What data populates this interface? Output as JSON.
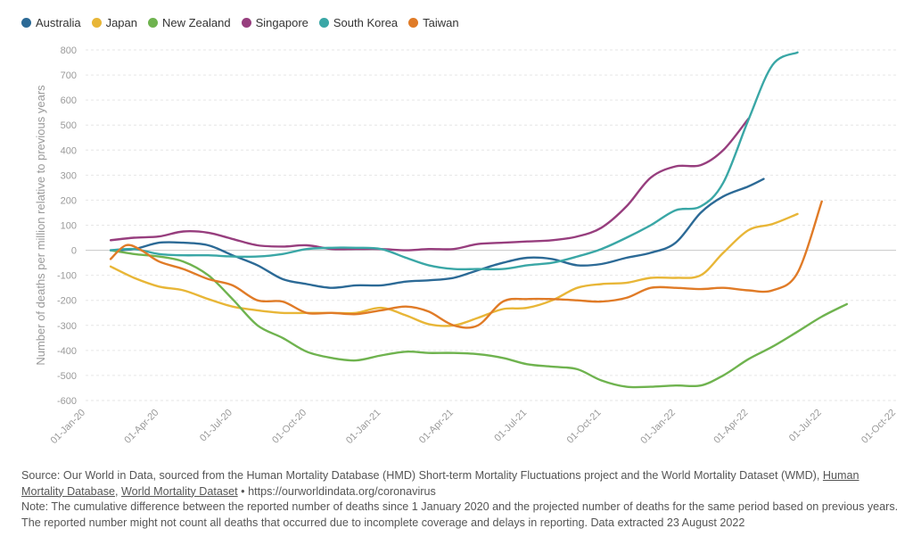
{
  "chart_data": {
    "type": "line",
    "ylabel": "Number of deaths per million relative to previous years",
    "ylim": [
      -600,
      800
    ],
    "yticks": [
      800,
      700,
      600,
      500,
      400,
      300,
      200,
      100,
      0,
      -100,
      -200,
      -300,
      -400,
      -500,
      -600
    ],
    "xlim": [
      "2020-01-01",
      "2022-10-01"
    ],
    "xticks": [
      {
        "date": "2020-01-01",
        "label": "01-Jan-20"
      },
      {
        "date": "2020-04-01",
        "label": "01-Apr-20"
      },
      {
        "date": "2020-07-01",
        "label": "01-Jul-20"
      },
      {
        "date": "2020-10-01",
        "label": "01-Oct-20"
      },
      {
        "date": "2021-01-01",
        "label": "01-Jan-21"
      },
      {
        "date": "2021-04-01",
        "label": "01-Apr-21"
      },
      {
        "date": "2021-07-01",
        "label": "01-Jul-21"
      },
      {
        "date": "2021-10-01",
        "label": "01-Oct-21"
      },
      {
        "date": "2022-01-01",
        "label": "01-Jan-22"
      },
      {
        "date": "2022-04-01",
        "label": "01-Apr-22"
      },
      {
        "date": "2022-07-01",
        "label": "01-Jul-22"
      },
      {
        "date": "2022-10-01",
        "label": "01-Oct-22"
      }
    ],
    "grid": true,
    "legend_position": "top-left",
    "series": [
      {
        "name": "Australia",
        "color": "#2c6a96",
        "points": [
          [
            "2020-02-01",
            0
          ],
          [
            "2020-03-01",
            5
          ],
          [
            "2020-04-01",
            30
          ],
          [
            "2020-05-01",
            30
          ],
          [
            "2020-06-01",
            20
          ],
          [
            "2020-07-01",
            -20
          ],
          [
            "2020-08-01",
            -60
          ],
          [
            "2020-09-01",
            -115
          ],
          [
            "2020-10-01",
            -135
          ],
          [
            "2020-11-01",
            -150
          ],
          [
            "2020-12-01",
            -140
          ],
          [
            "2021-01-01",
            -140
          ],
          [
            "2021-02-01",
            -125
          ],
          [
            "2021-03-01",
            -120
          ],
          [
            "2021-04-01",
            -110
          ],
          [
            "2021-05-01",
            -80
          ],
          [
            "2021-06-01",
            -50
          ],
          [
            "2021-07-01",
            -30
          ],
          [
            "2021-08-01",
            -35
          ],
          [
            "2021-09-01",
            -60
          ],
          [
            "2021-10-01",
            -55
          ],
          [
            "2021-11-01",
            -30
          ],
          [
            "2021-12-01",
            -10
          ],
          [
            "2022-01-01",
            30
          ],
          [
            "2022-02-01",
            150
          ],
          [
            "2022-03-01",
            215
          ],
          [
            "2022-04-01",
            255
          ],
          [
            "2022-04-20",
            285
          ]
        ]
      },
      {
        "name": "Japan",
        "color": "#e8b637",
        "points": [
          [
            "2020-02-01",
            -65
          ],
          [
            "2020-03-01",
            -110
          ],
          [
            "2020-04-01",
            -145
          ],
          [
            "2020-05-01",
            -160
          ],
          [
            "2020-06-01",
            -195
          ],
          [
            "2020-07-01",
            -225
          ],
          [
            "2020-08-01",
            -240
          ],
          [
            "2020-09-01",
            -250
          ],
          [
            "2020-10-01",
            -250
          ],
          [
            "2020-11-01",
            -250
          ],
          [
            "2020-12-01",
            -250
          ],
          [
            "2021-01-01",
            -230
          ],
          [
            "2021-02-01",
            -260
          ],
          [
            "2021-03-01",
            -295
          ],
          [
            "2021-04-01",
            -300
          ],
          [
            "2021-05-01",
            -270
          ],
          [
            "2021-06-01",
            -235
          ],
          [
            "2021-07-01",
            -230
          ],
          [
            "2021-08-01",
            -200
          ],
          [
            "2021-09-01",
            -150
          ],
          [
            "2021-10-01",
            -135
          ],
          [
            "2021-11-01",
            -130
          ],
          [
            "2021-12-01",
            -110
          ],
          [
            "2022-01-01",
            -110
          ],
          [
            "2022-02-01",
            -100
          ],
          [
            "2022-03-01",
            -10
          ],
          [
            "2022-04-01",
            80
          ],
          [
            "2022-05-01",
            105
          ],
          [
            "2022-06-01",
            145
          ]
        ]
      },
      {
        "name": "New Zealand",
        "color": "#6fb34f",
        "points": [
          [
            "2020-02-01",
            0
          ],
          [
            "2020-03-01",
            -15
          ],
          [
            "2020-04-01",
            -25
          ],
          [
            "2020-05-01",
            -45
          ],
          [
            "2020-06-01",
            -100
          ],
          [
            "2020-07-01",
            -195
          ],
          [
            "2020-08-01",
            -300
          ],
          [
            "2020-09-01",
            -350
          ],
          [
            "2020-10-01",
            -405
          ],
          [
            "2020-11-01",
            -430
          ],
          [
            "2020-12-01",
            -440
          ],
          [
            "2021-01-01",
            -420
          ],
          [
            "2021-02-01",
            -405
          ],
          [
            "2021-03-01",
            -410
          ],
          [
            "2021-04-01",
            -410
          ],
          [
            "2021-05-01",
            -415
          ],
          [
            "2021-06-01",
            -430
          ],
          [
            "2021-07-01",
            -455
          ],
          [
            "2021-08-01",
            -465
          ],
          [
            "2021-09-01",
            -475
          ],
          [
            "2021-10-01",
            -520
          ],
          [
            "2021-11-01",
            -545
          ],
          [
            "2021-12-01",
            -545
          ],
          [
            "2022-01-01",
            -540
          ],
          [
            "2022-02-01",
            -540
          ],
          [
            "2022-03-01",
            -500
          ],
          [
            "2022-04-01",
            -435
          ],
          [
            "2022-05-01",
            -385
          ],
          [
            "2022-06-01",
            -325
          ],
          [
            "2022-07-01",
            -265
          ],
          [
            "2022-08-01",
            -215
          ]
        ]
      },
      {
        "name": "Singapore",
        "color": "#973e7e",
        "points": [
          [
            "2020-02-01",
            40
          ],
          [
            "2020-03-01",
            50
          ],
          [
            "2020-04-01",
            55
          ],
          [
            "2020-05-01",
            75
          ],
          [
            "2020-06-01",
            70
          ],
          [
            "2020-07-01",
            45
          ],
          [
            "2020-08-01",
            20
          ],
          [
            "2020-09-01",
            15
          ],
          [
            "2020-10-01",
            20
          ],
          [
            "2020-11-01",
            5
          ],
          [
            "2020-12-01",
            5
          ],
          [
            "2021-01-01",
            5
          ],
          [
            "2021-02-01",
            0
          ],
          [
            "2021-03-01",
            5
          ],
          [
            "2021-04-01",
            5
          ],
          [
            "2021-05-01",
            25
          ],
          [
            "2021-06-01",
            30
          ],
          [
            "2021-07-01",
            35
          ],
          [
            "2021-08-01",
            40
          ],
          [
            "2021-09-01",
            55
          ],
          [
            "2021-10-01",
            90
          ],
          [
            "2021-11-01",
            175
          ],
          [
            "2021-12-01",
            290
          ],
          [
            "2022-01-01",
            335
          ],
          [
            "2022-02-01",
            340
          ],
          [
            "2022-03-01",
            400
          ],
          [
            "2022-04-01",
            525
          ]
        ]
      },
      {
        "name": "South Korea",
        "color": "#3aa7a6",
        "points": [
          [
            "2020-02-01",
            0
          ],
          [
            "2020-03-01",
            5
          ],
          [
            "2020-04-01",
            -15
          ],
          [
            "2020-05-01",
            -20
          ],
          [
            "2020-06-01",
            -20
          ],
          [
            "2020-07-01",
            -25
          ],
          [
            "2020-08-01",
            -25
          ],
          [
            "2020-09-01",
            -15
          ],
          [
            "2020-10-01",
            5
          ],
          [
            "2020-11-01",
            10
          ],
          [
            "2020-12-01",
            10
          ],
          [
            "2021-01-01",
            5
          ],
          [
            "2021-02-01",
            -30
          ],
          [
            "2021-03-01",
            -60
          ],
          [
            "2021-04-01",
            -75
          ],
          [
            "2021-05-01",
            -75
          ],
          [
            "2021-06-01",
            -75
          ],
          [
            "2021-07-01",
            -60
          ],
          [
            "2021-08-01",
            -50
          ],
          [
            "2021-09-01",
            -25
          ],
          [
            "2021-10-01",
            5
          ],
          [
            "2021-11-01",
            50
          ],
          [
            "2021-12-01",
            100
          ],
          [
            "2022-01-01",
            160
          ],
          [
            "2022-02-01",
            175
          ],
          [
            "2022-03-01",
            270
          ],
          [
            "2022-04-01",
            520
          ],
          [
            "2022-05-01",
            740
          ],
          [
            "2022-06-01",
            790
          ]
        ]
      },
      {
        "name": "Taiwan",
        "color": "#e07b27",
        "points": [
          [
            "2020-02-01",
            -35
          ],
          [
            "2020-02-20",
            20
          ],
          [
            "2020-03-10",
            0
          ],
          [
            "2020-04-01",
            -45
          ],
          [
            "2020-05-01",
            -75
          ],
          [
            "2020-06-01",
            -115
          ],
          [
            "2020-07-01",
            -140
          ],
          [
            "2020-08-01",
            -200
          ],
          [
            "2020-09-01",
            -205
          ],
          [
            "2020-10-01",
            -250
          ],
          [
            "2020-11-01",
            -250
          ],
          [
            "2020-12-01",
            -255
          ],
          [
            "2021-01-01",
            -240
          ],
          [
            "2021-02-01",
            -225
          ],
          [
            "2021-03-01",
            -245
          ],
          [
            "2021-04-01",
            -300
          ],
          [
            "2021-05-01",
            -300
          ],
          [
            "2021-06-01",
            -205
          ],
          [
            "2021-07-01",
            -195
          ],
          [
            "2021-08-01",
            -195
          ],
          [
            "2021-09-01",
            -200
          ],
          [
            "2021-10-01",
            -205
          ],
          [
            "2021-11-01",
            -190
          ],
          [
            "2021-12-01",
            -150
          ],
          [
            "2022-01-01",
            -150
          ],
          [
            "2022-02-01",
            -155
          ],
          [
            "2022-03-01",
            -150
          ],
          [
            "2022-04-01",
            -160
          ],
          [
            "2022-05-01",
            -160
          ],
          [
            "2022-06-01",
            -90
          ],
          [
            "2022-07-01",
            195
          ]
        ]
      }
    ]
  },
  "footer": {
    "source_prefix": "Source: Our World in Data, sourced from the Human Mortality Database (HMD) Short-term Mortality Fluctuations project and the World Mortality Dataset (WMD), ",
    "link_hmd": "Human Mortality Database",
    "separator": ", ",
    "link_wmd": "World Mortality Dataset",
    "url_text": " • https://ourworldindata.org/coronavirus",
    "note": "Note: The cumulative difference between the reported number of deaths since 1 January 2020 and the projected number of deaths for the same period based on previous years. The reported number might not count all deaths that occurred due to incomplete coverage and delays in reporting. Data extracted 23 August 2022"
  }
}
